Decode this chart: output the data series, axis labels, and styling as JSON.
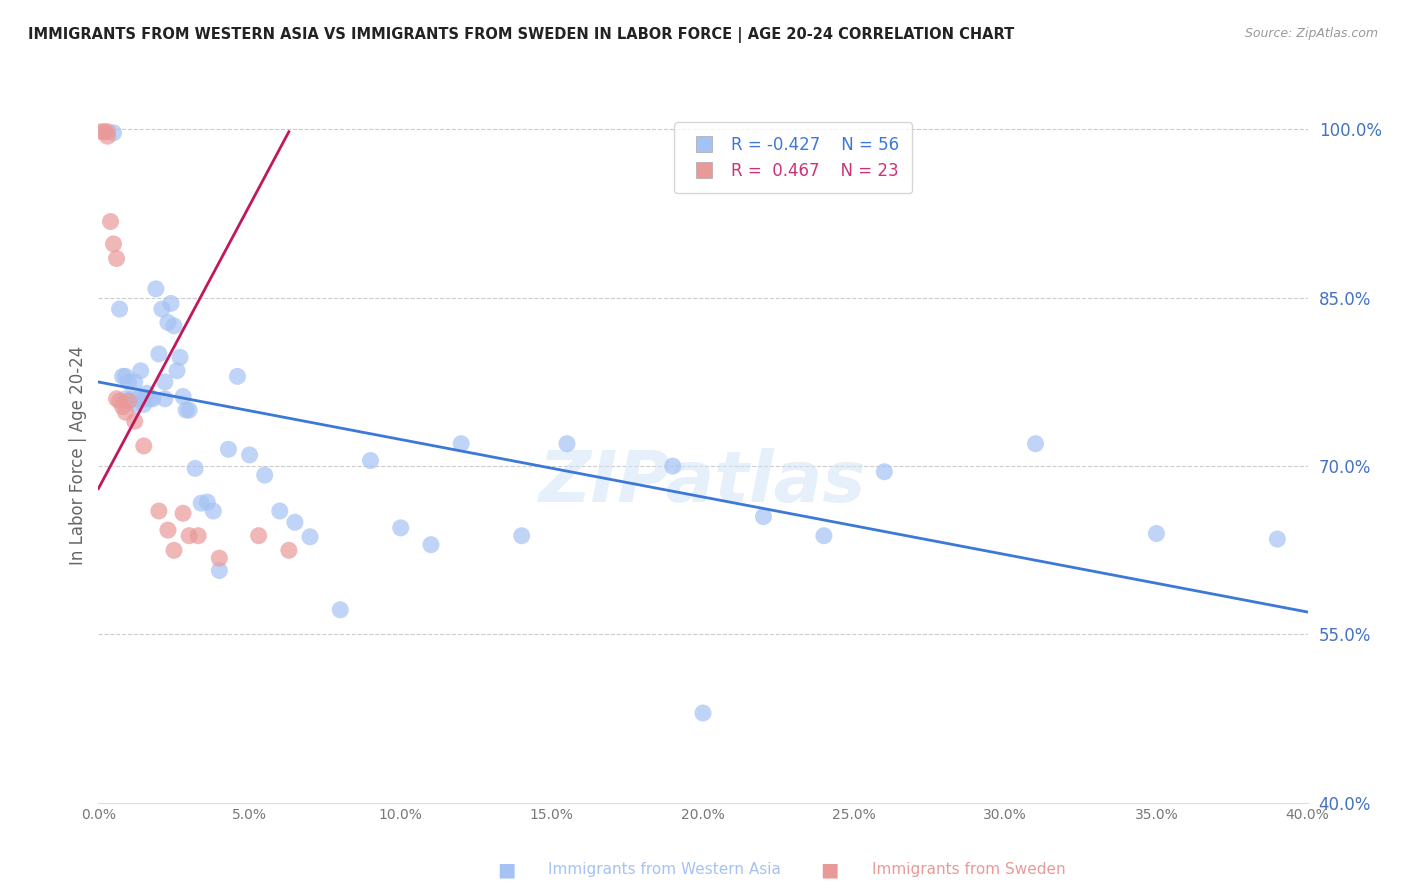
{
  "title": "IMMIGRANTS FROM WESTERN ASIA VS IMMIGRANTS FROM SWEDEN IN LABOR FORCE | AGE 20-24 CORRELATION CHART",
  "source": "Source: ZipAtlas.com",
  "ylabel": "In Labor Force | Age 20-24",
  "xlim": [
    0.0,
    0.4
  ],
  "ylim": [
    0.4,
    1.02
  ],
  "yticks": [
    0.4,
    0.55,
    0.7,
    0.85,
    1.0
  ],
  "xticks": [
    0.0,
    0.05,
    0.1,
    0.15,
    0.2,
    0.25,
    0.3,
    0.35,
    0.4
  ],
  "blue_color": "#a4c2f4",
  "pink_color": "#ea9999",
  "blue_line_color": "#3c78d8",
  "pink_line_color": "#c2185b",
  "right_axis_color": "#4472c4",
  "legend_R1": "R = -0.427",
  "legend_N1": "N = 56",
  "legend_R2": "R =  0.467",
  "legend_N2": "N = 23",
  "blue_scatter_x": [
    0.005,
    0.007,
    0.008,
    0.009,
    0.009,
    0.01,
    0.011,
    0.012,
    0.012,
    0.013,
    0.014,
    0.015,
    0.015,
    0.016,
    0.017,
    0.018,
    0.019,
    0.02,
    0.021,
    0.022,
    0.022,
    0.023,
    0.024,
    0.025,
    0.026,
    0.027,
    0.028,
    0.029,
    0.03,
    0.032,
    0.034,
    0.036,
    0.038,
    0.04,
    0.043,
    0.046,
    0.05,
    0.055,
    0.06,
    0.065,
    0.07,
    0.08,
    0.09,
    0.1,
    0.11,
    0.12,
    0.14,
    0.155,
    0.19,
    0.2,
    0.22,
    0.24,
    0.26,
    0.31,
    0.35,
    0.39
  ],
  "blue_scatter_y": [
    0.997,
    0.84,
    0.78,
    0.78,
    0.76,
    0.775,
    0.76,
    0.775,
    0.755,
    0.76,
    0.785,
    0.76,
    0.755,
    0.765,
    0.76,
    0.76,
    0.858,
    0.8,
    0.84,
    0.76,
    0.775,
    0.828,
    0.845,
    0.825,
    0.785,
    0.797,
    0.762,
    0.75,
    0.75,
    0.698,
    0.667,
    0.668,
    0.66,
    0.607,
    0.715,
    0.78,
    0.71,
    0.692,
    0.66,
    0.65,
    0.637,
    0.572,
    0.705,
    0.645,
    0.63,
    0.72,
    0.638,
    0.72,
    0.7,
    0.48,
    0.655,
    0.638,
    0.695,
    0.72,
    0.64,
    0.635
  ],
  "pink_scatter_x": [
    0.001,
    0.002,
    0.003,
    0.003,
    0.004,
    0.005,
    0.006,
    0.006,
    0.007,
    0.008,
    0.009,
    0.01,
    0.012,
    0.015,
    0.02,
    0.023,
    0.025,
    0.028,
    0.03,
    0.033,
    0.04,
    0.053,
    0.063
  ],
  "pink_scatter_y": [
    0.998,
    0.998,
    0.998,
    0.994,
    0.918,
    0.898,
    0.885,
    0.76,
    0.758,
    0.753,
    0.748,
    0.758,
    0.74,
    0.718,
    0.66,
    0.643,
    0.625,
    0.658,
    0.638,
    0.638,
    0.618,
    0.638,
    0.625
  ],
  "blue_trendline_x": [
    0.0,
    0.4
  ],
  "blue_trendline_y": [
    0.775,
    0.57
  ],
  "pink_trendline_x": [
    0.0,
    0.063
  ],
  "pink_trendline_y": [
    0.68,
    0.998
  ],
  "watermark": "ZIPatlas",
  "background_color": "#ffffff",
  "grid_color": "#cccccc",
  "legend_blue_label": "Immigrants from Western Asia",
  "legend_pink_label": "Immigrants from Sweden"
}
